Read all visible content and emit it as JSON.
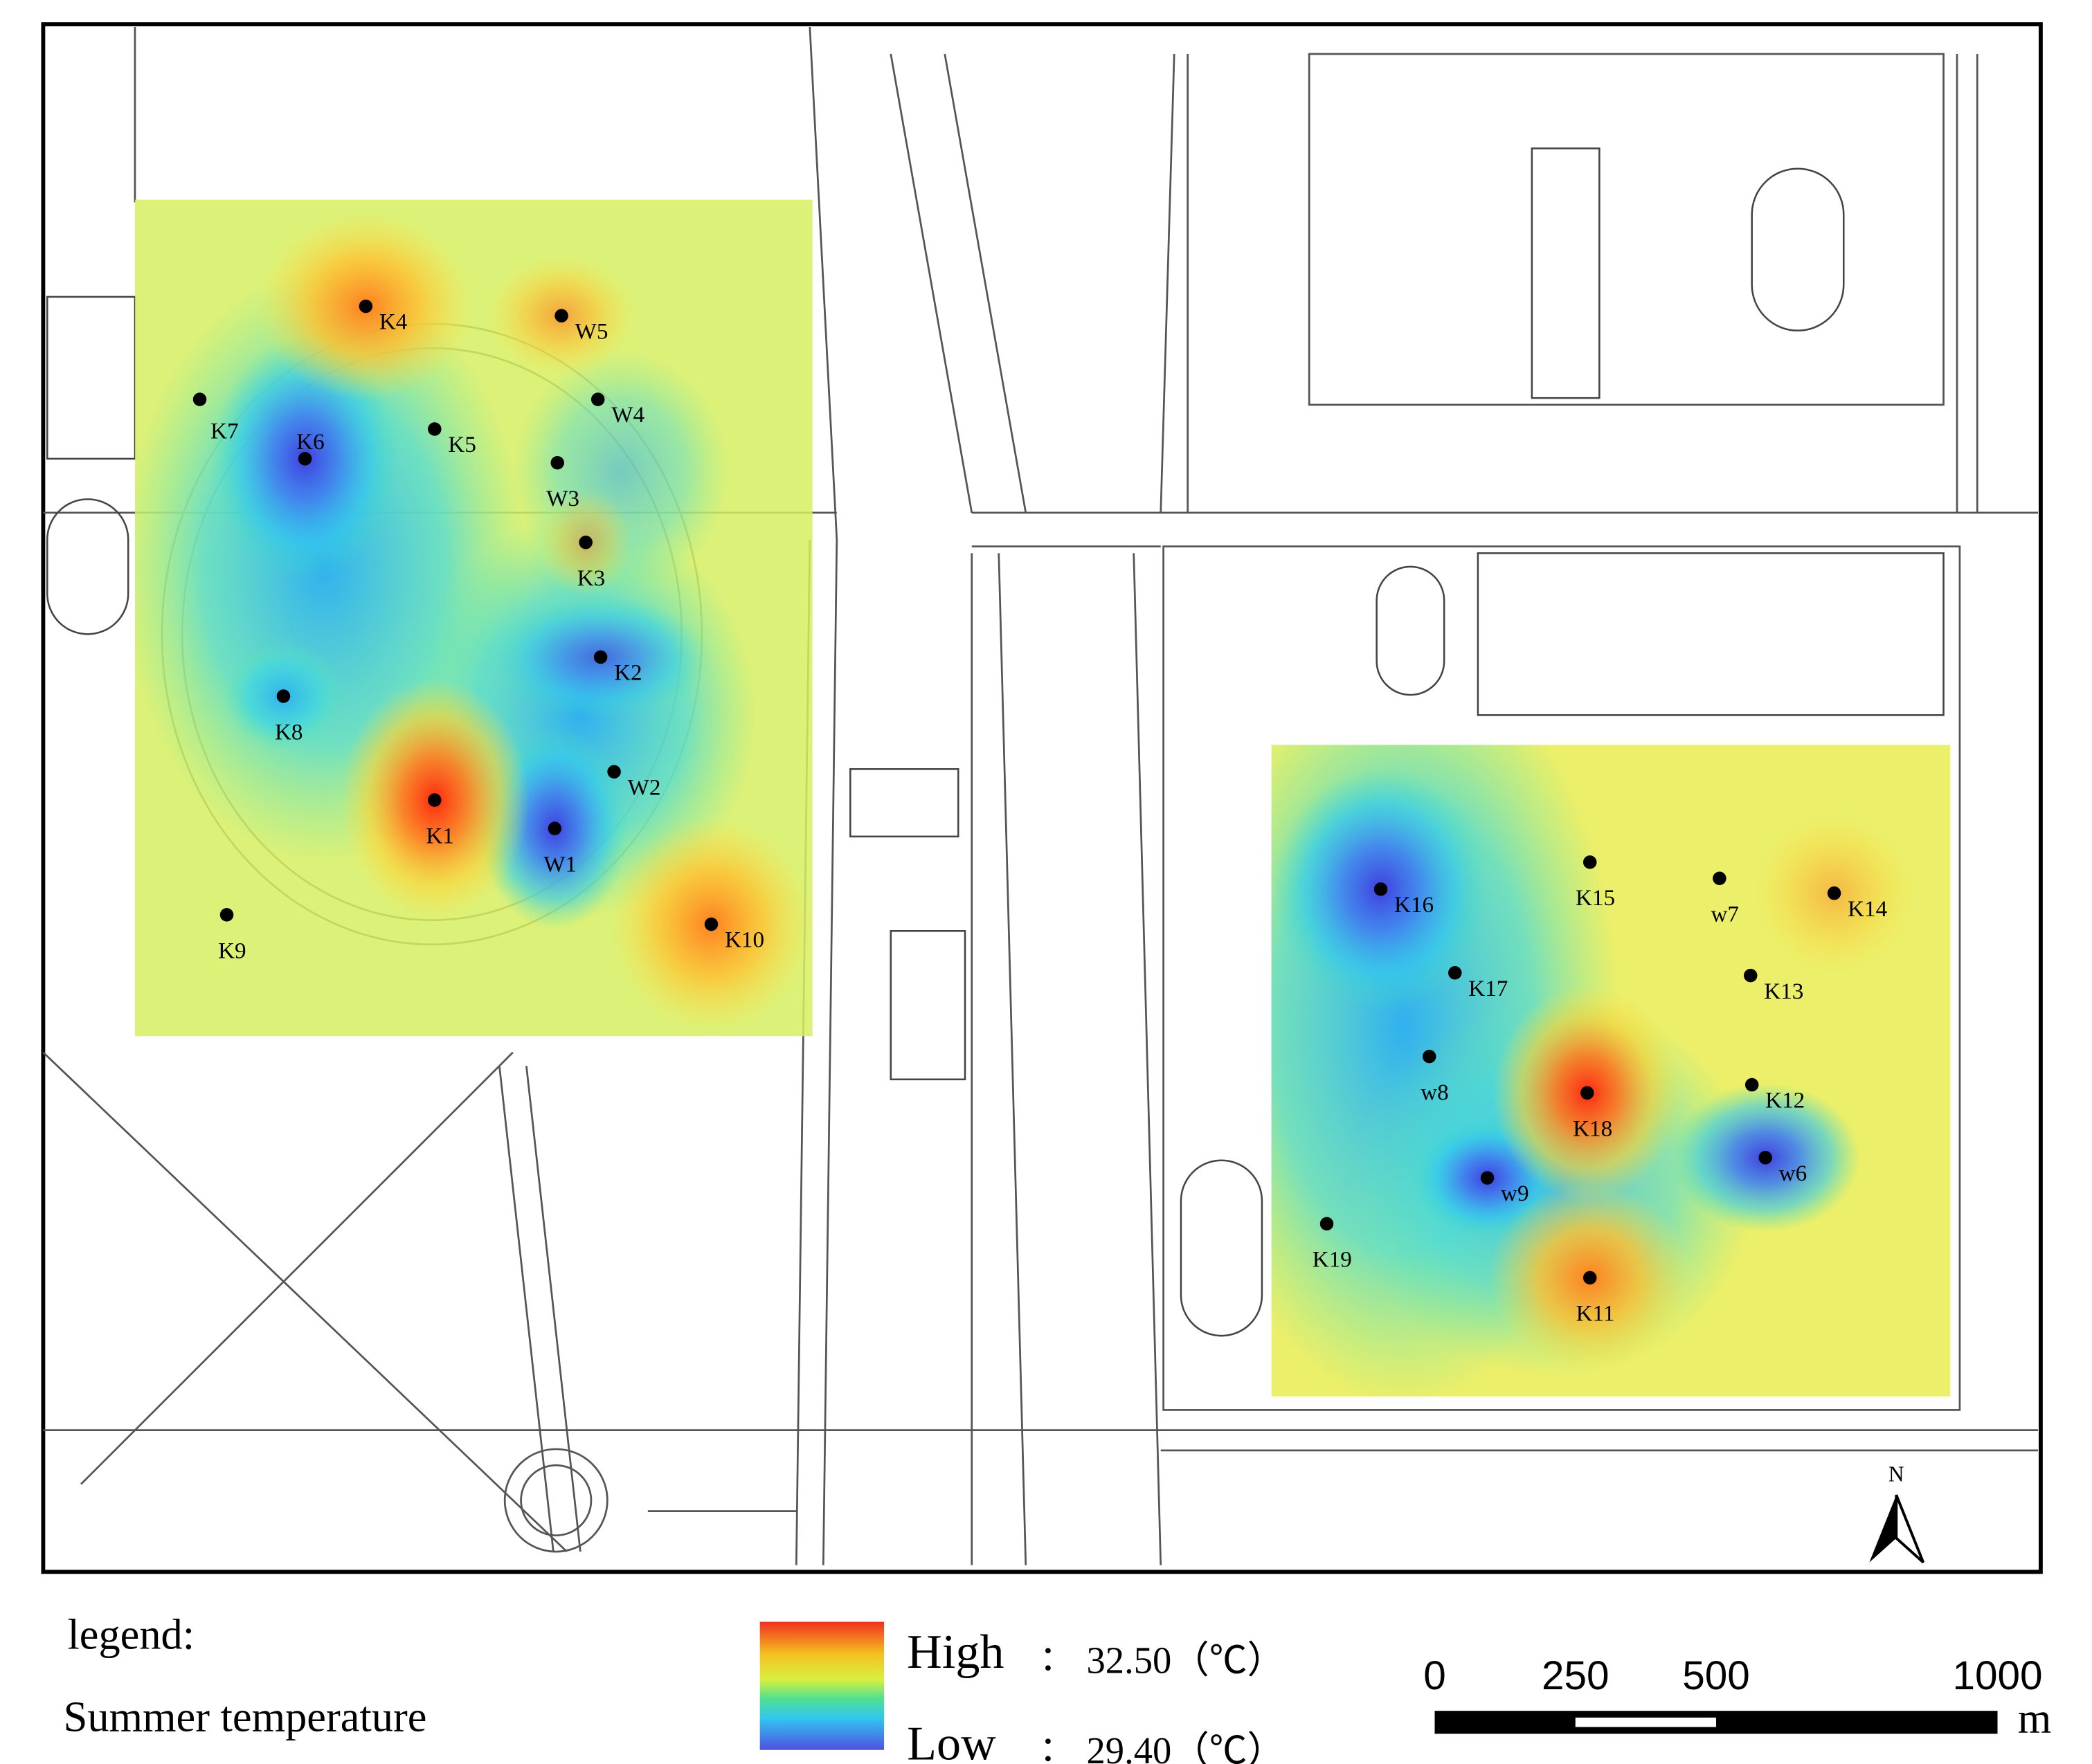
{
  "legend": {
    "title": "legend:",
    "subtitle": "Summer temperature",
    "high": {
      "label": "High",
      "value": "32.50（℃）"
    },
    "low": {
      "label": "Low",
      "value": "29.40（℃）"
    },
    "separator": "："
  },
  "scale_bar": {
    "ticks": [
      0,
      250,
      500,
      1000
    ],
    "unit": "m"
  },
  "north": "N",
  "points": [
    {
      "label": "K4"
    },
    {
      "label": "W5"
    },
    {
      "label": "W4"
    },
    {
      "label": "K7"
    },
    {
      "label": "K5"
    },
    {
      "label": "K6"
    },
    {
      "label": "W3"
    },
    {
      "label": "K3"
    },
    {
      "label": "K2"
    },
    {
      "label": "K8"
    },
    {
      "label": "W2"
    },
    {
      "label": "K1"
    },
    {
      "label": "W1"
    },
    {
      "label": "K9"
    },
    {
      "label": "K10"
    },
    {
      "label": "K16"
    },
    {
      "label": "K15"
    },
    {
      "label": "w7"
    },
    {
      "label": "K14"
    },
    {
      "label": "K17"
    },
    {
      "label": "K13"
    },
    {
      "label": "w8"
    },
    {
      "label": "K18"
    },
    {
      "label": "K12"
    },
    {
      "label": "w9"
    },
    {
      "label": "w6"
    },
    {
      "label": "K19"
    },
    {
      "label": "K11"
    }
  ]
}
